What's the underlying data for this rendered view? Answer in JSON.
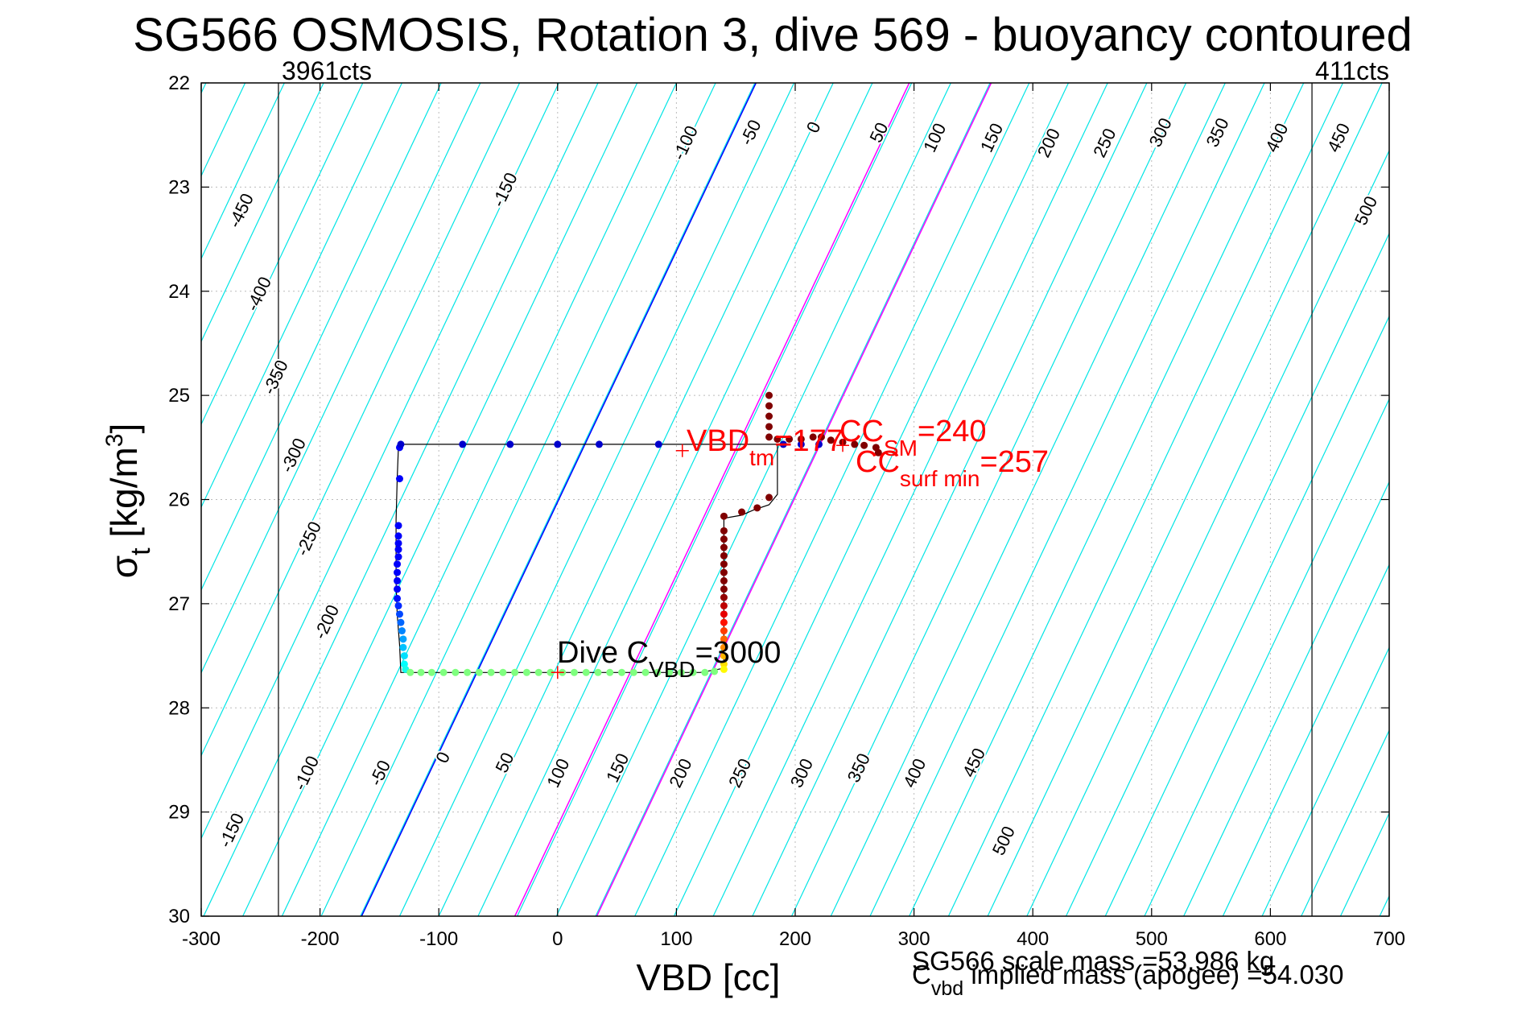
{
  "chart_data": {
    "type": "scatter",
    "title": "SG566 OSMOSIS, Rotation 3, dive 569 - buoyancy contoured",
    "xlabel": "VBD [cc]",
    "ylabel": {
      "main": "σ",
      "sub": "t",
      "unit": " [kg/m",
      "sup": "3",
      "close": "]"
    },
    "xlim": [
      -300,
      700
    ],
    "ylim": [
      22,
      30
    ],
    "y_reversed": true,
    "grid": true,
    "x_ticks": [
      "-300",
      "-200",
      "-100",
      "0",
      "100",
      "200",
      "300",
      "400",
      "500",
      "600",
      "700"
    ],
    "y_ticks": [
      "22",
      "23",
      "24",
      "25",
      "26",
      "27",
      "28",
      "29",
      "30"
    ],
    "count_limits": [
      {
        "x": -235,
        "label": "3961cts"
      },
      {
        "x": 635,
        "label": "411cts"
      }
    ],
    "contours": {
      "values": [
        -450,
        -400,
        -350,
        -300,
        -250,
        -200,
        -150,
        -100,
        -50,
        0,
        50,
        100,
        150,
        200,
        250,
        300,
        350,
        400,
        450,
        500
      ],
      "x_at_bottom": [
        -270,
        -230,
        -195,
        -162,
        -130,
        -97,
        -65,
        -33,
        0,
        33,
        68,
        98,
        132,
        164
      ],
      "slope_cc_per_unit_sigma": 41.5,
      "colors": {
        "default": "#00e5e5",
        "zero": "#0000ff",
        "highlight": "#ff00ff"
      },
      "highlight_values": [
        100,
        200
      ],
      "top_labels": [
        {
          "text": "-450",
          "x": -262,
          "y": 23.25
        },
        {
          "text": "-400",
          "x": -247,
          "y": 24.05
        },
        {
          "text": "-350",
          "x": -233,
          "y": 24.85
        },
        {
          "text": "-300",
          "x": -218,
          "y": 25.6
        },
        {
          "text": "-250",
          "x": -205,
          "y": 26.4
        },
        {
          "text": "-200",
          "x": -190,
          "y": 27.2
        },
        {
          "text": "-150",
          "x": -40,
          "y": 23.05
        },
        {
          "text": "-100",
          "x": 112,
          "y": 22.6
        },
        {
          "text": "-50",
          "x": 167,
          "y": 22.5
        },
        {
          "text": "0",
          "x": 220,
          "y": 22.45
        },
        {
          "text": "50",
          "x": 275,
          "y": 22.5
        },
        {
          "text": "100",
          "x": 322,
          "y": 22.55
        },
        {
          "text": "150",
          "x": 370,
          "y": 22.55
        },
        {
          "text": "200",
          "x": 418,
          "y": 22.6
        },
        {
          "text": "250",
          "x": 465,
          "y": 22.6
        },
        {
          "text": "300",
          "x": 512,
          "y": 22.5
        },
        {
          "text": "350",
          "x": 560,
          "y": 22.5
        },
        {
          "text": "400",
          "x": 610,
          "y": 22.55
        },
        {
          "text": "450",
          "x": 662,
          "y": 22.55
        },
        {
          "text": "500",
          "x": 685,
          "y": 23.25
        }
      ],
      "bottom_labels": [
        {
          "text": "-150",
          "x": -270,
          "y": 29.2
        },
        {
          "text": "-100",
          "x": -207,
          "y": 28.65
        },
        {
          "text": "-50",
          "x": -145,
          "y": 28.65
        },
        {
          "text": "0",
          "x": -92,
          "y": 28.5
        },
        {
          "text": "50",
          "x": -40,
          "y": 28.55
        },
        {
          "text": "100",
          "x": 5,
          "y": 28.65
        },
        {
          "text": "150",
          "x": 55,
          "y": 28.6
        },
        {
          "text": "200",
          "x": 108,
          "y": 28.65
        },
        {
          "text": "250",
          "x": 158,
          "y": 28.65
        },
        {
          "text": "300",
          "x": 210,
          "y": 28.65
        },
        {
          "text": "350",
          "x": 258,
          "y": 28.6
        },
        {
          "text": "400",
          "x": 305,
          "y": 28.65
        },
        {
          "text": "450",
          "x": 355,
          "y": 28.55
        },
        {
          "text": "500",
          "x": 380,
          "y": 29.3
        }
      ]
    },
    "trace": {
      "color": "#000000",
      "points": [
        [
          -132,
          25.47
        ],
        [
          -80,
          25.47
        ],
        [
          -40,
          25.47
        ],
        [
          0,
          25.47
        ],
        [
          35,
          25.47
        ],
        [
          85,
          25.47
        ],
        [
          170,
          25.47
        ],
        [
          185,
          25.47
        ],
        [
          185,
          25.95
        ],
        [
          178,
          26.05
        ],
        [
          165,
          26.1
        ],
        [
          155,
          26.15
        ],
        [
          140,
          26.18
        ],
        [
          140,
          27.62
        ],
        [
          120,
          27.66
        ],
        [
          -40,
          27.66
        ],
        [
          -132,
          27.66
        ],
        [
          -133,
          27.4
        ],
        [
          -135,
          27.1
        ],
        [
          -136,
          26.8
        ],
        [
          -136,
          26.2
        ],
        [
          -135,
          25.8
        ],
        [
          -134,
          25.5
        ],
        [
          -132,
          25.47
        ]
      ]
    },
    "samples": {
      "ascent_points": [
        [
          -133,
          25.5
        ],
        [
          -133,
          25.8
        ],
        [
          -134,
          26.25
        ],
        [
          -134,
          26.35
        ],
        [
          -134,
          26.42
        ],
        [
          -134,
          26.48
        ],
        [
          -134,
          26.55
        ],
        [
          -135,
          26.62
        ],
        [
          -135,
          26.7
        ],
        [
          -135,
          26.78
        ],
        [
          -135,
          26.86
        ],
        [
          -135,
          26.95
        ],
        [
          -134,
          27.02
        ],
        [
          -133,
          27.1
        ],
        [
          -132,
          27.18
        ],
        [
          -131,
          27.26
        ],
        [
          -130,
          27.34
        ],
        [
          -130,
          27.42
        ],
        [
          -129,
          27.5
        ],
        [
          -129,
          27.58
        ],
        [
          -128,
          27.63
        ]
      ],
      "bottom_points": [
        [
          -124,
          27.66
        ],
        [
          -115,
          27.66
        ],
        [
          -106,
          27.66
        ],
        [
          -96,
          27.66
        ],
        [
          -86,
          27.66
        ],
        [
          -76,
          27.66
        ],
        [
          -66,
          27.66
        ],
        [
          -56,
          27.66
        ],
        [
          -46,
          27.66
        ],
        [
          -36,
          27.66
        ],
        [
          -26,
          27.66
        ],
        [
          -16,
          27.66
        ],
        [
          -6,
          27.66
        ],
        [
          4,
          27.66
        ],
        [
          14,
          27.66
        ],
        [
          24,
          27.66
        ],
        [
          34,
          27.66
        ],
        [
          44,
          27.66
        ],
        [
          54,
          27.66
        ],
        [
          64,
          27.66
        ],
        [
          74,
          27.66
        ],
        [
          84,
          27.66
        ],
        [
          94,
          27.66
        ],
        [
          104,
          27.66
        ],
        [
          114,
          27.66
        ],
        [
          124,
          27.66
        ],
        [
          132,
          27.65
        ]
      ],
      "descent_points": [
        [
          140,
          26.3
        ],
        [
          140,
          26.38
        ],
        [
          140,
          26.46
        ],
        [
          140,
          26.54
        ],
        [
          140,
          26.62
        ],
        [
          140,
          26.7
        ],
        [
          140,
          26.78
        ],
        [
          140,
          26.86
        ],
        [
          140,
          26.94
        ],
        [
          140,
          27.02
        ],
        [
          140,
          27.1
        ],
        [
          140,
          27.18
        ],
        [
          140,
          27.26
        ],
        [
          140,
          27.34
        ],
        [
          140,
          27.42
        ],
        [
          140,
          27.5
        ],
        [
          140,
          27.58
        ],
        [
          140,
          27.63
        ]
      ],
      "surface_blue_points": [
        [
          -132,
          25.47
        ],
        [
          -80,
          25.47
        ],
        [
          -40,
          25.47
        ],
        [
          0,
          25.47
        ],
        [
          35,
          25.47
        ],
        [
          85,
          25.47
        ],
        [
          190,
          25.47
        ],
        [
          205,
          25.47
        ],
        [
          220,
          25.47
        ]
      ],
      "surface_dark_points": [
        [
          140,
          26.16
        ],
        [
          155,
          26.12
        ],
        [
          168,
          26.08
        ],
        [
          178,
          25.98
        ],
        [
          178,
          25.0
        ],
        [
          178,
          25.1
        ],
        [
          178,
          25.2
        ],
        [
          178,
          25.3
        ],
        [
          178,
          25.4
        ],
        [
          185,
          25.42
        ],
        [
          195,
          25.42
        ],
        [
          205,
          25.42
        ],
        [
          215,
          25.4
        ],
        [
          222,
          25.4
        ],
        [
          230,
          25.43
        ],
        [
          240,
          25.45
        ],
        [
          250,
          25.47
        ],
        [
          258,
          25.48
        ],
        [
          268,
          25.5
        ],
        [
          270,
          25.55
        ]
      ]
    },
    "markers": [
      {
        "x": 105,
        "y": 25.53,
        "color": "#ff0000"
      },
      {
        "x": 0,
        "y": 27.66,
        "color": "#ff0000"
      },
      {
        "x": 240,
        "y": 25.48,
        "color": "#ff0000"
      }
    ],
    "annotations": {
      "vbd_tm": {
        "main": "VBD",
        "sub": "tm",
        "rest": "=177",
        "color": "#ff0000"
      },
      "cc_sm": {
        "main": "CC",
        "sub": "SM",
        "rest": "=240",
        "color": "#ff0000"
      },
      "cc_surf_min": {
        "main": "CC",
        "sub": "surf min",
        "rest": "=257",
        "color": "#ff0000"
      },
      "dive_cvbd": {
        "main": "Dive C",
        "sub": "VBD",
        "rest": "=3000",
        "color": "#000000"
      }
    },
    "footer": {
      "scale_mass": "SG566 scale mass =53.986 kg",
      "implied_main": "C",
      "implied_sub": "vbd",
      "implied_rest": " implied mass (apogee) =54.030"
    }
  }
}
